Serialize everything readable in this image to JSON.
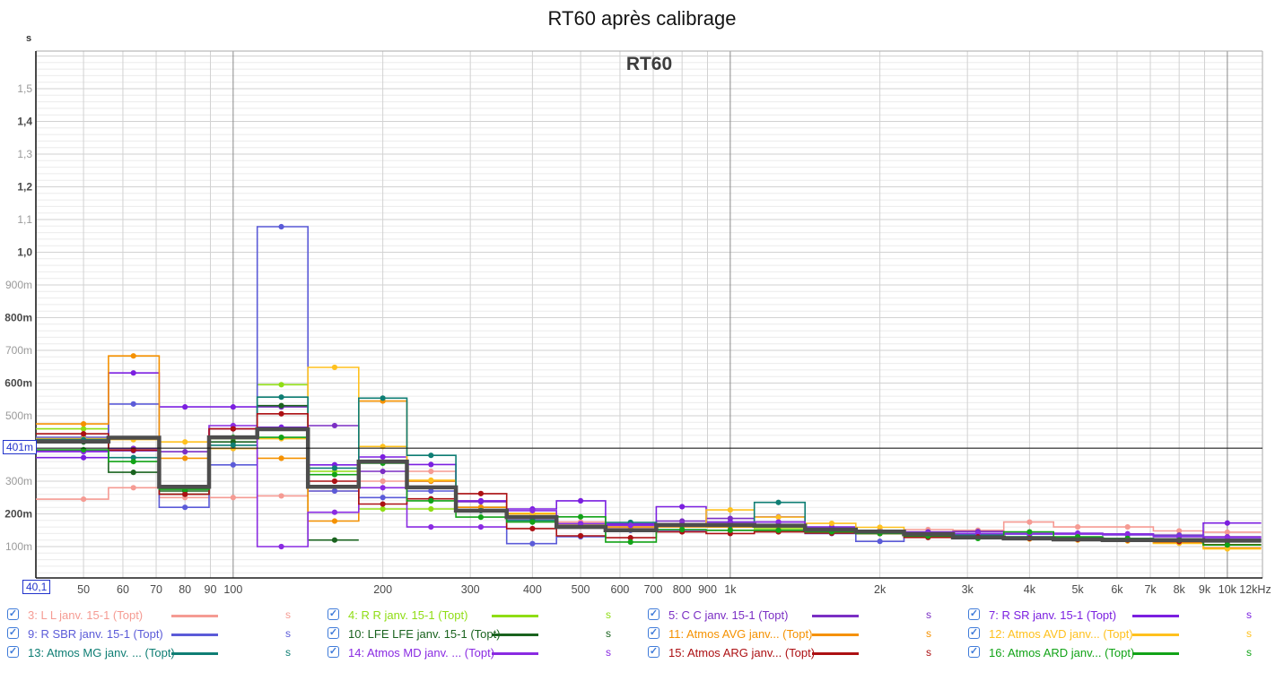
{
  "title": "RT60 après calibrage",
  "chart": {
    "inner_title": "RT60",
    "y_unit": "s",
    "cursor": {
      "y_label": "401m",
      "x_label": "40,1",
      "y_value": 0.401
    },
    "y_ticks": [
      {
        "v": 1.5,
        "t": "1,5",
        "dark": false
      },
      {
        "v": 1.4,
        "t": "1,4",
        "dark": true
      },
      {
        "v": 1.3,
        "t": "1,3",
        "dark": false
      },
      {
        "v": 1.2,
        "t": "1,2",
        "dark": true
      },
      {
        "v": 1.1,
        "t": "1,1",
        "dark": false
      },
      {
        "v": 1.0,
        "t": "1,0",
        "dark": true
      },
      {
        "v": 0.9,
        "t": "900m",
        "dark": false
      },
      {
        "v": 0.8,
        "t": "800m",
        "dark": true
      },
      {
        "v": 0.7,
        "t": "700m",
        "dark": false
      },
      {
        "v": 0.6,
        "t": "600m",
        "dark": true
      },
      {
        "v": 0.5,
        "t": "500m",
        "dark": false
      },
      {
        "v": 0.3,
        "t": "300m",
        "dark": false
      },
      {
        "v": 0.2,
        "t": "200m",
        "dark": true
      },
      {
        "v": 0.1,
        "t": "100m",
        "dark": false
      }
    ],
    "x_ticks": [
      {
        "f": 50,
        "t": "50"
      },
      {
        "f": 60,
        "t": "60"
      },
      {
        "f": 70,
        "t": "70"
      },
      {
        "f": 80,
        "t": "80"
      },
      {
        "f": 90,
        "t": "90"
      },
      {
        "f": 100,
        "t": "100",
        "dark": true
      },
      {
        "f": 200,
        "t": "200"
      },
      {
        "f": 300,
        "t": "300"
      },
      {
        "f": 400,
        "t": "400"
      },
      {
        "f": 500,
        "t": "500"
      },
      {
        "f": 600,
        "t": "600"
      },
      {
        "f": 700,
        "t": "700"
      },
      {
        "f": 800,
        "t": "800"
      },
      {
        "f": 900,
        "t": "900"
      },
      {
        "f": 1000,
        "t": "1k",
        "dark": true
      },
      {
        "f": 2000,
        "t": "2k"
      },
      {
        "f": 3000,
        "t": "3k"
      },
      {
        "f": 4000,
        "t": "4k"
      },
      {
        "f": 5000,
        "t": "5k"
      },
      {
        "f": 6000,
        "t": "6k"
      },
      {
        "f": 7000,
        "t": "7k"
      },
      {
        "f": 8000,
        "t": "8k"
      },
      {
        "f": 9000,
        "t": "9k"
      },
      {
        "f": 10000,
        "t": "10k",
        "dark": true
      }
    ],
    "x_end_label": "12kHz"
  },
  "chart_data": {
    "type": "line",
    "subtype": "third-octave-step",
    "x_unit": "Hz",
    "y_unit": "s",
    "x_scale": "log",
    "xlim": [
      40.1,
      11700
    ],
    "ylim": [
      0,
      1.615
    ],
    "y_major_step": 0.1,
    "y_minor_step": 0.02,
    "grid": true,
    "legend_position": "bottom",
    "categories": [
      50,
      63,
      80,
      100,
      125,
      160,
      200,
      250,
      315,
      400,
      500,
      630,
      800,
      1000,
      1250,
      1600,
      2000,
      2500,
      3150,
      4000,
      5000,
      6300,
      8000,
      10000
    ],
    "series": [
      {
        "name": "3: L L janv. 15-1 (Topt)",
        "color": "#F59B93",
        "unit": "s",
        "values": [
          0.245,
          0.28,
          0.25,
          0.25,
          0.255,
          0.27,
          0.3,
          0.33,
          0.24,
          0.2,
          0.175,
          0.155,
          0.15,
          0.15,
          0.15,
          0.145,
          0.14,
          0.152,
          0.15,
          0.175,
          0.16,
          0.16,
          0.148,
          0.144
        ]
      },
      {
        "name": "4: R R janv. 15-1 (Topt)",
        "color": "#8FDD14",
        "unit": "s",
        "values": [
          0.46,
          0.4,
          0.26,
          0.43,
          0.595,
          0.33,
          0.215,
          0.215,
          0.22,
          0.2,
          0.165,
          0.15,
          0.165,
          0.16,
          0.155,
          0.15,
          0.14,
          0.135,
          0.13,
          0.13,
          0.125,
          0.125,
          0.12,
          0.12
        ]
      },
      {
        "name": "5: C C janv. 15-1 (Topt)",
        "color": "#7B2FC4",
        "unit": "s",
        "values": [
          0.394,
          0.393,
          0.39,
          0.46,
          0.527,
          0.47,
          0.33,
          0.3,
          0.237,
          0.185,
          0.17,
          0.169,
          0.178,
          0.186,
          0.175,
          0.155,
          0.15,
          0.145,
          0.146,
          0.14,
          0.141,
          0.139,
          0.135,
          0.13
        ]
      },
      {
        "name": "7: R SR janv. 15-1 (Topt)",
        "color": "#7B1FE0",
        "unit": "s",
        "values": [
          0.372,
          0.631,
          0.527,
          0.527,
          0.465,
          0.35,
          0.374,
          0.351,
          0.24,
          0.215,
          0.24,
          0.17,
          0.222,
          0.175,
          0.191,
          0.16,
          0.148,
          0.142,
          0.14,
          0.138,
          0.138,
          0.136,
          0.132,
          0.172
        ]
      },
      {
        "name": "9: R SBR janv. 15-1 (Topt)",
        "color": "#5B5BD8",
        "unit": "s",
        "values": [
          0.434,
          0.536,
          0.22,
          0.35,
          1.078,
          0.27,
          0.25,
          0.27,
          0.22,
          0.109,
          0.13,
          0.15,
          0.15,
          0.15,
          0.15,
          0.14,
          0.116,
          0.13,
          0.14,
          0.139,
          0.14,
          0.137,
          0.132,
          0.123
        ]
      },
      {
        "name": "10: LFE LFE janv. 15-1 (Topt)",
        "color": "#1A631F",
        "unit": "s",
        "values": [
          0.42,
          0.327,
          0.27,
          0.42,
          0.531,
          0.12,
          null,
          null,
          null,
          null,
          null,
          null,
          null,
          null,
          null,
          null,
          null,
          null,
          null,
          null,
          null,
          null,
          null,
          null
        ]
      },
      {
        "name": "11: Atmos AVG janv... (Topt)",
        "color": "#F59100",
        "unit": "s",
        "values": [
          0.475,
          0.683,
          0.37,
          0.4,
          0.37,
          0.178,
          0.545,
          0.3,
          0.22,
          0.2,
          0.165,
          0.16,
          0.16,
          0.16,
          0.16,
          0.15,
          0.14,
          0.133,
          0.128,
          0.124,
          0.12,
          0.118,
          0.112,
          0.096
        ]
      },
      {
        "name": "12: Atmos AVD janv... (Topt)",
        "color": "#FFC11E",
        "unit": "s",
        "values": [
          0.43,
          0.427,
          0.42,
          0.4,
          0.43,
          0.648,
          0.406,
          0.303,
          0.21,
          0.202,
          0.168,
          0.165,
          0.17,
          0.212,
          0.19,
          0.171,
          0.159,
          0.13,
          0.127,
          0.123,
          0.12,
          0.117,
          0.11,
          0.093
        ]
      },
      {
        "name": "13: Atmos MG janv. ... (Topt)",
        "color": "#0F7E74",
        "unit": "s",
        "values": [
          0.427,
          0.372,
          0.26,
          0.41,
          0.557,
          0.34,
          0.554,
          0.379,
          0.21,
          0.18,
          0.164,
          0.174,
          0.165,
          0.165,
          0.235,
          0.15,
          0.145,
          0.14,
          0.135,
          0.13,
          0.128,
          0.125,
          0.12,
          0.115
        ]
      },
      {
        "name": "14: Atmos MD janv. ... (Topt)",
        "color": "#8A2BE2",
        "unit": "s",
        "values": [
          0.39,
          0.4,
          0.28,
          0.47,
          0.1,
          0.205,
          0.28,
          0.16,
          0.16,
          0.21,
          0.17,
          0.165,
          0.17,
          0.17,
          0.175,
          0.15,
          0.145,
          0.14,
          0.14,
          0.14,
          0.14,
          0.138,
          0.13,
          0.128
        ]
      },
      {
        "name": "15: Atmos ARG janv... (Topt)",
        "color": "#AC1013",
        "unit": "s",
        "values": [
          0.445,
          0.395,
          0.26,
          0.46,
          0.506,
          0.3,
          0.23,
          0.246,
          0.262,
          0.155,
          0.133,
          0.127,
          0.145,
          0.14,
          0.145,
          0.141,
          0.14,
          0.128,
          0.13,
          0.125,
          0.122,
          0.12,
          0.115,
          0.106
        ]
      },
      {
        "name": "16: Atmos ARD janv... (Topt)",
        "color": "#12A317",
        "unit": "s",
        "values": [
          0.396,
          0.36,
          0.275,
          0.434,
          0.434,
          0.32,
          0.355,
          0.24,
          0.19,
          0.175,
          0.191,
          0.114,
          0.152,
          0.15,
          0.15,
          0.145,
          0.14,
          0.132,
          0.125,
          0.145,
          0.13,
          0.125,
          0.12,
          0.105
        ]
      }
    ],
    "average": {
      "name": "Moyenne (thick unlegended line)",
      "color": "#4D4D4D",
      "values": [
        0.421,
        0.433,
        0.283,
        0.434,
        0.459,
        0.283,
        0.36,
        0.281,
        0.21,
        0.19,
        0.16,
        0.15,
        0.166,
        0.166,
        0.164,
        0.152,
        0.146,
        0.138,
        0.128,
        0.125,
        0.122,
        0.12,
        0.12,
        0.118
      ]
    }
  },
  "legend": {
    "unit": "s",
    "checked": true,
    "check_glyph": "✓"
  },
  "colors": {
    "axis": "#1a1a1a",
    "grid_minor": "#ebebeb",
    "grid_major": "#d2d2d2",
    "grid_vertical": "#d2d2d2",
    "grid_decade": "#8a8a8a",
    "border_light": "#aaaaaa",
    "tick_text_dark": "#4a4a4a",
    "tick_text_light": "#9a9a9a",
    "cursor_blue": "#2233cc",
    "checkbox_blue": "#3f7bd9"
  }
}
